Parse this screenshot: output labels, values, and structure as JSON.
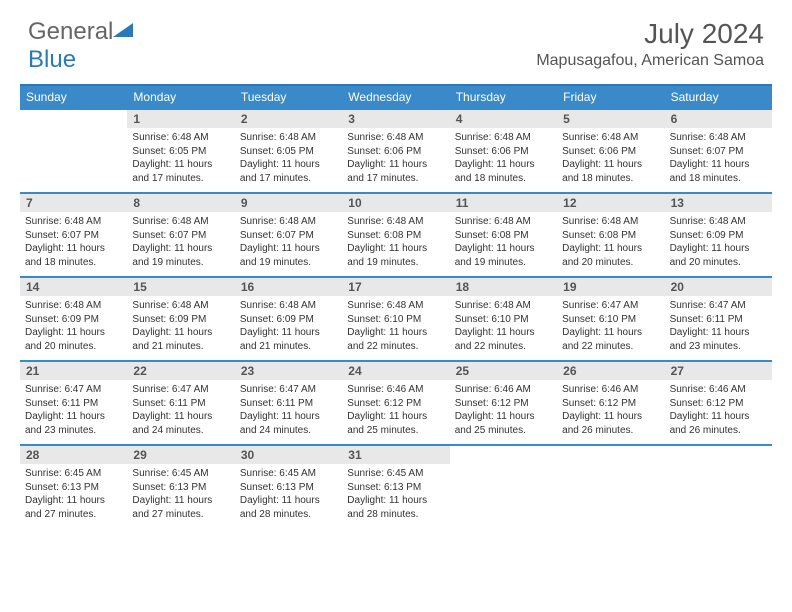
{
  "logo": {
    "textGeneral": "General",
    "textBlue": "Blue"
  },
  "title": "July 2024",
  "location": "Mapusagafou, American Samoa",
  "colors": {
    "headerBar": "#3a8ac9",
    "weekBorder": "#3a8ac9",
    "dayNumBg": "#e8e8e8",
    "logoBlue": "#2a7ab9",
    "textGray": "#555"
  },
  "weekdays": [
    "Sunday",
    "Monday",
    "Tuesday",
    "Wednesday",
    "Thursday",
    "Friday",
    "Saturday"
  ],
  "weeks": [
    [
      {
        "num": "",
        "lines": []
      },
      {
        "num": "1",
        "lines": [
          "Sunrise: 6:48 AM",
          "Sunset: 6:05 PM",
          "Daylight: 11 hours and 17 minutes."
        ]
      },
      {
        "num": "2",
        "lines": [
          "Sunrise: 6:48 AM",
          "Sunset: 6:05 PM",
          "Daylight: 11 hours and 17 minutes."
        ]
      },
      {
        "num": "3",
        "lines": [
          "Sunrise: 6:48 AM",
          "Sunset: 6:06 PM",
          "Daylight: 11 hours and 17 minutes."
        ]
      },
      {
        "num": "4",
        "lines": [
          "Sunrise: 6:48 AM",
          "Sunset: 6:06 PM",
          "Daylight: 11 hours and 18 minutes."
        ]
      },
      {
        "num": "5",
        "lines": [
          "Sunrise: 6:48 AM",
          "Sunset: 6:06 PM",
          "Daylight: 11 hours and 18 minutes."
        ]
      },
      {
        "num": "6",
        "lines": [
          "Sunrise: 6:48 AM",
          "Sunset: 6:07 PM",
          "Daylight: 11 hours and 18 minutes."
        ]
      }
    ],
    [
      {
        "num": "7",
        "lines": [
          "Sunrise: 6:48 AM",
          "Sunset: 6:07 PM",
          "Daylight: 11 hours and 18 minutes."
        ]
      },
      {
        "num": "8",
        "lines": [
          "Sunrise: 6:48 AM",
          "Sunset: 6:07 PM",
          "Daylight: 11 hours and 19 minutes."
        ]
      },
      {
        "num": "9",
        "lines": [
          "Sunrise: 6:48 AM",
          "Sunset: 6:07 PM",
          "Daylight: 11 hours and 19 minutes."
        ]
      },
      {
        "num": "10",
        "lines": [
          "Sunrise: 6:48 AM",
          "Sunset: 6:08 PM",
          "Daylight: 11 hours and 19 minutes."
        ]
      },
      {
        "num": "11",
        "lines": [
          "Sunrise: 6:48 AM",
          "Sunset: 6:08 PM",
          "Daylight: 11 hours and 19 minutes."
        ]
      },
      {
        "num": "12",
        "lines": [
          "Sunrise: 6:48 AM",
          "Sunset: 6:08 PM",
          "Daylight: 11 hours and 20 minutes."
        ]
      },
      {
        "num": "13",
        "lines": [
          "Sunrise: 6:48 AM",
          "Sunset: 6:09 PM",
          "Daylight: 11 hours and 20 minutes."
        ]
      }
    ],
    [
      {
        "num": "14",
        "lines": [
          "Sunrise: 6:48 AM",
          "Sunset: 6:09 PM",
          "Daylight: 11 hours and 20 minutes."
        ]
      },
      {
        "num": "15",
        "lines": [
          "Sunrise: 6:48 AM",
          "Sunset: 6:09 PM",
          "Daylight: 11 hours and 21 minutes."
        ]
      },
      {
        "num": "16",
        "lines": [
          "Sunrise: 6:48 AM",
          "Sunset: 6:09 PM",
          "Daylight: 11 hours and 21 minutes."
        ]
      },
      {
        "num": "17",
        "lines": [
          "Sunrise: 6:48 AM",
          "Sunset: 6:10 PM",
          "Daylight: 11 hours and 22 minutes."
        ]
      },
      {
        "num": "18",
        "lines": [
          "Sunrise: 6:48 AM",
          "Sunset: 6:10 PM",
          "Daylight: 11 hours and 22 minutes."
        ]
      },
      {
        "num": "19",
        "lines": [
          "Sunrise: 6:47 AM",
          "Sunset: 6:10 PM",
          "Daylight: 11 hours and 22 minutes."
        ]
      },
      {
        "num": "20",
        "lines": [
          "Sunrise: 6:47 AM",
          "Sunset: 6:11 PM",
          "Daylight: 11 hours and 23 minutes."
        ]
      }
    ],
    [
      {
        "num": "21",
        "lines": [
          "Sunrise: 6:47 AM",
          "Sunset: 6:11 PM",
          "Daylight: 11 hours and 23 minutes."
        ]
      },
      {
        "num": "22",
        "lines": [
          "Sunrise: 6:47 AM",
          "Sunset: 6:11 PM",
          "Daylight: 11 hours and 24 minutes."
        ]
      },
      {
        "num": "23",
        "lines": [
          "Sunrise: 6:47 AM",
          "Sunset: 6:11 PM",
          "Daylight: 11 hours and 24 minutes."
        ]
      },
      {
        "num": "24",
        "lines": [
          "Sunrise: 6:46 AM",
          "Sunset: 6:12 PM",
          "Daylight: 11 hours and 25 minutes."
        ]
      },
      {
        "num": "25",
        "lines": [
          "Sunrise: 6:46 AM",
          "Sunset: 6:12 PM",
          "Daylight: 11 hours and 25 minutes."
        ]
      },
      {
        "num": "26",
        "lines": [
          "Sunrise: 6:46 AM",
          "Sunset: 6:12 PM",
          "Daylight: 11 hours and 26 minutes."
        ]
      },
      {
        "num": "27",
        "lines": [
          "Sunrise: 6:46 AM",
          "Sunset: 6:12 PM",
          "Daylight: 11 hours and 26 minutes."
        ]
      }
    ],
    [
      {
        "num": "28",
        "lines": [
          "Sunrise: 6:45 AM",
          "Sunset: 6:13 PM",
          "Daylight: 11 hours and 27 minutes."
        ]
      },
      {
        "num": "29",
        "lines": [
          "Sunrise: 6:45 AM",
          "Sunset: 6:13 PM",
          "Daylight: 11 hours and 27 minutes."
        ]
      },
      {
        "num": "30",
        "lines": [
          "Sunrise: 6:45 AM",
          "Sunset: 6:13 PM",
          "Daylight: 11 hours and 28 minutes."
        ]
      },
      {
        "num": "31",
        "lines": [
          "Sunrise: 6:45 AM",
          "Sunset: 6:13 PM",
          "Daylight: 11 hours and 28 minutes."
        ]
      },
      {
        "num": "",
        "lines": []
      },
      {
        "num": "",
        "lines": []
      },
      {
        "num": "",
        "lines": []
      }
    ]
  ]
}
